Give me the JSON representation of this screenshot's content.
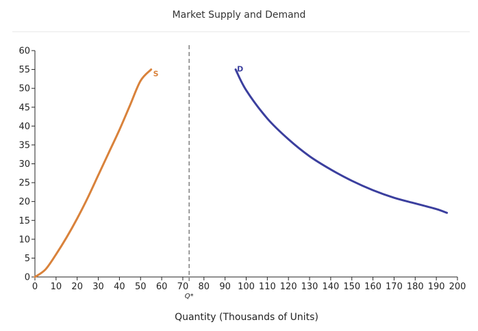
{
  "chart_data": {
    "type": "line",
    "title": "Market Supply and Demand",
    "xlabel": "Quantity (Thousands of Units)",
    "ylabel": "",
    "xlim": [
      0,
      200
    ],
    "ylim": [
      0,
      60
    ],
    "x_ticks": [
      0,
      10,
      20,
      30,
      40,
      50,
      60,
      70,
      80,
      90,
      100,
      110,
      120,
      130,
      140,
      150,
      160,
      170,
      180,
      190,
      200
    ],
    "y_ticks": [
      0,
      5,
      10,
      15,
      20,
      25,
      30,
      35,
      40,
      45,
      50,
      55,
      60
    ],
    "grid": false,
    "legend": "none",
    "series": [
      {
        "name": "S",
        "color": "#d9823b",
        "x": [
          0,
          5,
          10,
          15,
          20,
          25,
          30,
          35,
          40,
          45,
          50,
          55
        ],
        "y": [
          0,
          2,
          6,
          10.5,
          15.5,
          21,
          27,
          33,
          39,
          45.5,
          52,
          55
        ]
      },
      {
        "name": "D",
        "color": "#3b3f9e",
        "x": [
          95,
          100,
          110,
          120,
          130,
          140,
          150,
          160,
          170,
          180,
          190,
          195
        ],
        "y": [
          55,
          49.5,
          42,
          36.5,
          32,
          28.5,
          25.5,
          23,
          21,
          19.5,
          18,
          17
        ]
      }
    ],
    "annotations": [
      {
        "label": "Q*",
        "x": 73,
        "style": "dashed vertical line"
      }
    ]
  }
}
